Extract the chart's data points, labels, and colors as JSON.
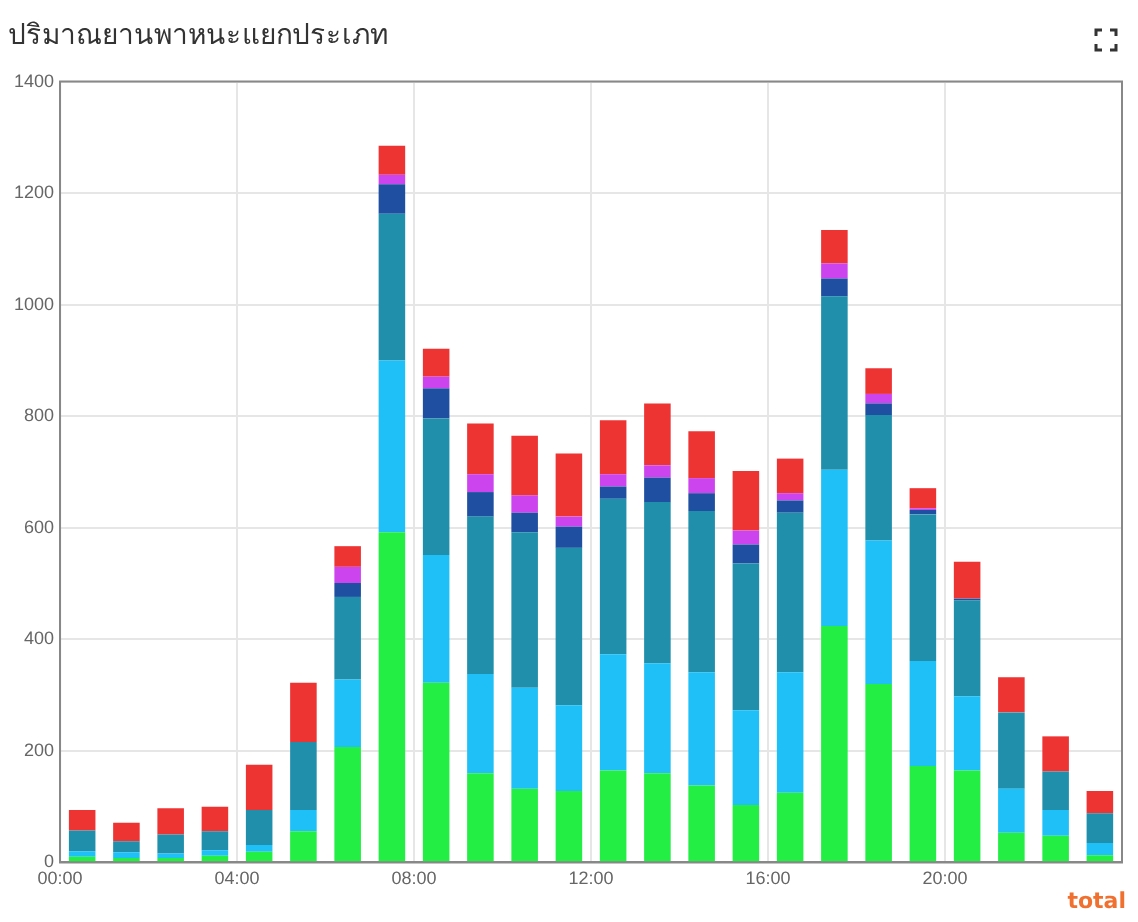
{
  "chart_data": {
    "type": "bar",
    "title": "ปริมาณยานพาหนะแยกประเภท",
    "stacked": true,
    "x": [
      0.5,
      1.5,
      2.5,
      3.5,
      4.5,
      5.5,
      6.5,
      7.5,
      8.5,
      9.5,
      10.5,
      11.5,
      12.5,
      13.5,
      14.5,
      15.5,
      16.5,
      17.5,
      18.5,
      19.5,
      20.5,
      21.5,
      22.5,
      23.5
    ],
    "series": [
      {
        "color": "#22ee44",
        "values": [
          10,
          8,
          8,
          12,
          19,
          56,
          207,
          592,
          322,
          160,
          132,
          128,
          165,
          160,
          138,
          103,
          125,
          424,
          320,
          173,
          165,
          53,
          48,
          13
        ]
      },
      {
        "color": "#1ec0f7",
        "values": [
          10,
          10,
          8,
          10,
          12,
          38,
          121,
          308,
          229,
          178,
          181,
          154,
          208,
          197,
          203,
          170,
          216,
          280,
          257,
          188,
          133,
          79,
          46,
          22
        ]
      },
      {
        "color": "#1f8fab",
        "values": [
          37,
          20,
          34,
          34,
          63,
          122,
          148,
          263,
          245,
          282,
          279,
          282,
          279,
          289,
          289,
          263,
          286,
          311,
          225,
          263,
          172,
          137,
          69,
          53
        ]
      },
      {
        "color": "#1f4fa0",
        "values": [
          0,
          0,
          0,
          0,
          0,
          0,
          25,
          53,
          54,
          44,
          35,
          38,
          22,
          44,
          32,
          34,
          22,
          32,
          21,
          8,
          3,
          0,
          0,
          0
        ]
      },
      {
        "color": "#cc44ee",
        "values": [
          0,
          0,
          0,
          0,
          0,
          0,
          29,
          17,
          21,
          32,
          31,
          18,
          22,
          22,
          27,
          25,
          13,
          27,
          17,
          3,
          0,
          0,
          0,
          0
        ]
      },
      {
        "color": "#ee3333",
        "values": [
          37,
          33,
          47,
          44,
          81,
          106,
          37,
          52,
          50,
          91,
          107,
          113,
          97,
          111,
          84,
          107,
          62,
          60,
          46,
          36,
          66,
          63,
          63,
          40
        ]
      }
    ],
    "xlim": [
      0,
      24
    ],
    "xticks": [
      {
        "value": 0,
        "label": "00:00"
      },
      {
        "value": 4,
        "label": "04:00"
      },
      {
        "value": 8,
        "label": "08:00"
      },
      {
        "value": 12,
        "label": "12:00"
      },
      {
        "value": 16,
        "label": "16:00"
      },
      {
        "value": 20,
        "label": "20:00"
      }
    ],
    "ylim": [
      0,
      1400
    ],
    "yticks": [
      0,
      200,
      400,
      600,
      800,
      1000,
      1200,
      1400
    ],
    "grid": true,
    "legend": false,
    "annotations": [
      "total"
    ]
  }
}
